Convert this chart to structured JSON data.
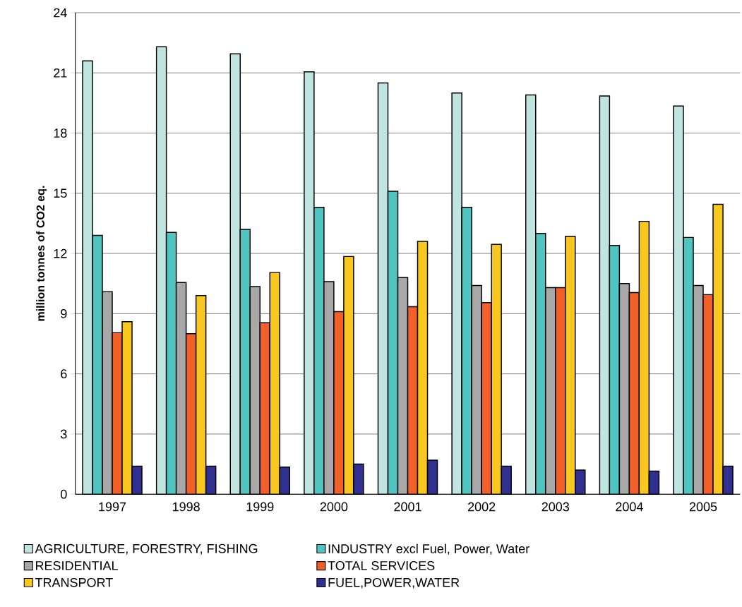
{
  "chart_data": {
    "type": "bar",
    "ylabel": "million tonnes of CO2 eq.",
    "categories": [
      "1997",
      "1998",
      "1999",
      "2000",
      "2001",
      "2002",
      "2003",
      "2004",
      "2005"
    ],
    "series": [
      {
        "name": "AGRICULTURE, FORESTRY, FISHING",
        "color": "#c0e4e0",
        "values": [
          21.6,
          22.3,
          21.95,
          21.05,
          20.5,
          20.0,
          19.9,
          19.85,
          19.35
        ]
      },
      {
        "name": "INDUSTRY excl Fuel, Power, Water",
        "color": "#50c4c0",
        "values": [
          12.9,
          13.05,
          13.2,
          14.3,
          15.1,
          14.3,
          13.0,
          12.4,
          12.8
        ]
      },
      {
        "name": "RESIDENTIAL",
        "color": "#a8a8a8",
        "values": [
          10.1,
          10.55,
          10.35,
          10.6,
          10.8,
          10.4,
          10.3,
          10.5,
          10.4
        ]
      },
      {
        "name": "TOTAL SERVICES",
        "color": "#f06028",
        "values": [
          8.05,
          8.0,
          8.55,
          9.1,
          9.35,
          9.55,
          10.3,
          10.05,
          9.95
        ]
      },
      {
        "name": "TRANSPORT",
        "color": "#f8c820",
        "values": [
          8.6,
          9.9,
          11.05,
          11.85,
          12.6,
          12.45,
          12.85,
          13.6,
          14.45
        ]
      },
      {
        "name": "FUEL,POWER,WATER",
        "color": "#303090",
        "values": [
          1.4,
          1.4,
          1.35,
          1.5,
          1.7,
          1.4,
          1.2,
          1.15,
          1.4
        ]
      }
    ],
    "ylim": [
      0,
      24
    ],
    "yticks": [
      0,
      3,
      6,
      9,
      12,
      15,
      18,
      21,
      24
    ],
    "grid": "y",
    "legend": "bottom"
  }
}
